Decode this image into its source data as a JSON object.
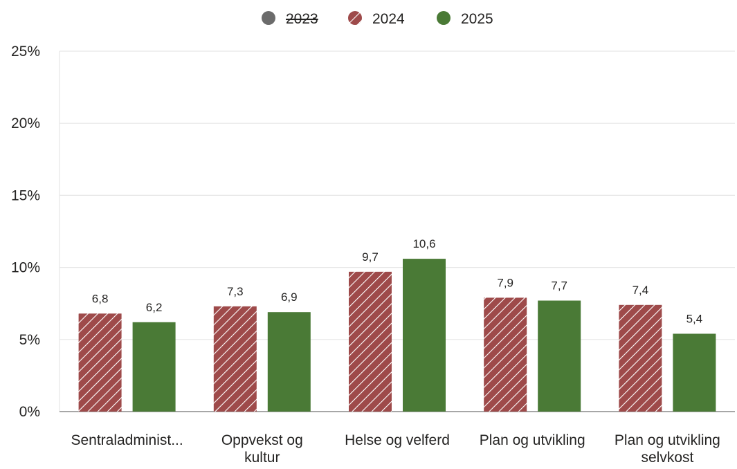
{
  "chart_data": {
    "type": "bar",
    "categories": [
      [
        "Sentraladminist..."
      ],
      [
        "Oppvekst og",
        "kultur"
      ],
      [
        "Helse og velferd"
      ],
      [
        "Plan og utvikling"
      ],
      [
        "Plan og utvikling",
        "selvkost"
      ]
    ],
    "series": [
      {
        "name": "2023",
        "values": [
          null,
          null,
          null,
          null,
          null
        ],
        "color": "#6b6b6b",
        "hidden": true
      },
      {
        "name": "2024",
        "values": [
          6.8,
          7.3,
          9.7,
          7.9,
          7.4
        ],
        "labels": [
          "6,8",
          "7,3",
          "9,7",
          "7,9",
          "7,4"
        ],
        "color": "#9e4a4a",
        "pattern": "diagonal-hatch"
      },
      {
        "name": "2025",
        "values": [
          6.2,
          6.9,
          10.6,
          7.7,
          5.4
        ],
        "labels": [
          "6,2",
          "6,9",
          "10,6",
          "7,7",
          "5,4"
        ],
        "color": "#4a7a36"
      }
    ],
    "yticks": [
      "0%",
      "5%",
      "10%",
      "15%",
      "20%",
      "25%"
    ],
    "ylim": [
      0,
      25
    ],
    "grid": true,
    "legend_position": "top-center",
    "title": "",
    "xlabel": "",
    "ylabel": ""
  }
}
